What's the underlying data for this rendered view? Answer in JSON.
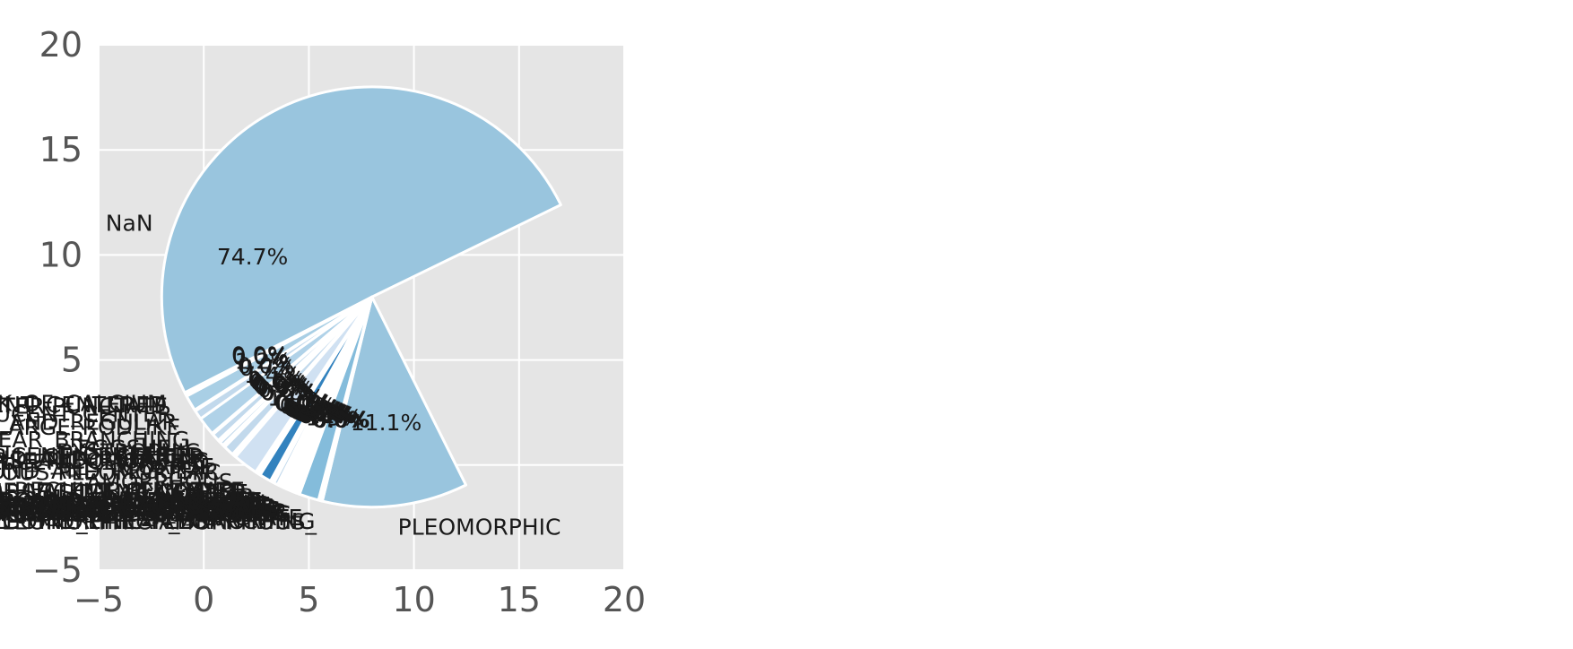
{
  "chart_data": {
    "type": "pie",
    "xlim": [
      -5,
      20
    ],
    "ylim": [
      -5,
      20
    ],
    "x_ticks": [
      "−5",
      "0",
      "5",
      "10",
      "15",
      "20"
    ],
    "y_ticks": [
      "−5",
      "0",
      "5",
      "10",
      "15",
      "20"
    ],
    "grid": true,
    "background": "#e5e5e5",
    "center": [
      8,
      8
    ],
    "radius": 10,
    "slices": [
      {
        "label": "NaN",
        "percent": 74.7,
        "pct_label": "74.7%",
        "color": "#99c5de"
      },
      {
        "label": "PLEOMORPHIC",
        "percent": 11.1,
        "pct_label": "11.1%",
        "color": "#99c5de"
      },
      {
        "label": "PLEOMORPHIC-AMORPHOUS_",
        "percent": 0.1,
        "pct_label": "0.0%",
        "color": "#c2d9ec"
      },
      {
        "label": "PLEOMORPHIC-FINE_LINEAR_BRANCHING",
        "percent": 0.1,
        "pct_label": "0.0%",
        "color": "#c2d9ec"
      },
      {
        "label": "PLEOMORPHIC-PLEOMORPHIC",
        "percent": 0.1,
        "pct_label": "0.0%",
        "color": "#c2d9ec"
      },
      {
        "label": "PUNCTATE",
        "percent": 1.5,
        "pct_label": "1.5%",
        "color": "#84bcdb"
      },
      {
        "label": "PUNCTATE-AMORPHOUS",
        "percent": 0.1,
        "pct_label": "0.1%",
        "color": "#c2d9ec"
      },
      {
        "label": "PUNCTATE-AMORPHOUS-PLEOMORPHIC",
        "percent": 0.1,
        "pct_label": "0.0%",
        "color": "#c2d9ec"
      },
      {
        "label": "PUNCTATE-FINE_LINEAR_BRANCHING",
        "percent": 0.1,
        "pct_label": "0.0%",
        "color": "#c2d9ec"
      },
      {
        "label": "PUNCTATE-LUCENT_CENTER",
        "percent": 0.1,
        "pct_label": "0.0%",
        "color": "#c2d9ec"
      },
      {
        "label": "PUNCTATE-PLEOMORPHIC",
        "percent": 0.2,
        "pct_label": "0.2%",
        "color": "#c2d9ec"
      },
      {
        "label": "ROUND_AND_REGULAR",
        "percent": 0.2,
        "pct_label": "0.2%",
        "color": "#c2d9ec"
      },
      {
        "label": "ROUND_AND_REGULAR-AMORPHOUS",
        "percent": 0.1,
        "pct_label": "0.1%",
        "color": "#c2d9ec"
      },
      {
        "label": "ROUND_AND_REGULAR-EGGSHELL",
        "percent": 0.1,
        "pct_label": "0.0%",
        "color": "#c2d9ec"
      },
      {
        "label": "ROUND_AND_REGULAR-LUCENT_CENTER",
        "percent": 0.2,
        "pct_label": "0.2%",
        "color": "#c2d9ec"
      },
      {
        "label": "ROUND_AND_REGULAR-LUCENT_CENTER-DYSTROPHIC",
        "percent": 0.1,
        "pct_label": "0.0%",
        "color": "#c2d9ec"
      },
      {
        "label": "ROUND_AND_REGULAR-LUCENT_CENTER-PUNCTATE",
        "percent": 0.1,
        "pct_label": "0.0%",
        "color": "#c2d9ec"
      },
      {
        "label": "ROUND_AND_REGULAR-PLEOMORPHIC",
        "percent": 0.1,
        "pct_label": "0.0%",
        "color": "#c2d9ec"
      },
      {
        "label": "ROUND_AND_REGULAR-PUNCTATE",
        "percent": 0.2,
        "pct_label": "0.2%",
        "color": "#c2d9ec"
      },
      {
        "label": "ROUND_AND_REGULAR-PUNCTATE-AMORPHOUS",
        "percent": 0.1,
        "pct_label": "0.0%",
        "color": "#c2d9ec"
      },
      {
        "label": "SKIN",
        "percent": 0.3,
        "pct_label": "0.3%",
        "color": "#c2d9ec"
      },
      {
        "label": "SKIN-COARSE-ROUND_AND_REGULAR",
        "percent": 0.1,
        "pct_label": "0.0%",
        "color": "#c2d9ec"
      },
      {
        "label": "SKIN-PUNCTATE",
        "percent": 0.1,
        "pct_label": "0.0%",
        "color": "#c2d9ec"
      },
      {
        "label": "SKIN-PUNCTATE-ROUND_AND_REGULAR",
        "percent": 0.1,
        "pct_label": "0.0%",
        "color": "#c2d9ec"
      },
      {
        "label": "VASCULAR",
        "percent": 0.9,
        "pct_label": "0.9%",
        "color": "#3282be"
      },
      {
        "label": "VASCULAR-COARSE",
        "percent": 0.1,
        "pct_label": "0.0%",
        "color": "#c2d9ec"
      },
      {
        "label": "VASCULAR-COARSE-LUCENT_CENTER",
        "percent": 0.1,
        "pct_label": "0.0%",
        "color": "#c2d9ec"
      },
      {
        "label": "VASCULAR-COARSE-LUCENT_CENTERED",
        "percent": 0.1,
        "pct_label": "0.0%",
        "color": "#c2d9ec"
      },
      {
        "label": "VASCULAR-COARSE-LUCENT_CENTER-ROUND_AND_REGULAR-PUNCTATE",
        "percent": 0.1,
        "pct_label": "0.0%",
        "color": "#c2d9ec"
      },
      {
        "label": "AMORPHOUS",
        "percent": 1.9,
        "pct_label": "1.9%",
        "color": "#d0e1f2"
      },
      {
        "label": "AMORPHOUS-PLEOMORPHIC",
        "percent": 0.2,
        "pct_label": "0.2%",
        "color": "#c2d9ec"
      },
      {
        "label": "AMORPHOUS-ROUND_AND_REGULAR",
        "percent": 0.1,
        "pct_label": "0.0%",
        "color": "#c2d9ec"
      },
      {
        "label": "COARSE",
        "percent": 0.8,
        "pct_label": "0.8%",
        "color": "#c2d9ec"
      },
      {
        "label": "COARSE-LUCENT_CENTERED",
        "percent": 0.1,
        "pct_label": "0.0%",
        "color": "#c2d9ec"
      },
      {
        "label": "COARSE-PLEOMORPHIC",
        "percent": 0.1,
        "pct_label": "0.0%",
        "color": "#c2d9ec"
      },
      {
        "label": "COARSE-ROUND_AND_REGULAR",
        "percent": 0.3,
        "pct_label": "0.3%",
        "color": "#c2d9ec"
      },
      {
        "label": "COARSE-ROUND_AND_REGULAR-LUCENT_CENTER",
        "percent": 0.1,
        "pct_label": "0.0%",
        "color": "#c2d9ec"
      },
      {
        "label": "COARSE-ROUND_AND_REGULAR-LUCENT_CENTERED",
        "percent": 0.1,
        "pct_label": "0.0%",
        "color": "#c2d9ec"
      },
      {
        "label": "DYSTROPHIC",
        "percent": 0.6,
        "pct_label": "0.6%",
        "color": "#c2d9ec"
      },
      {
        "label": "EGGSHELL",
        "percent": 0.1,
        "pct_label": "0.1%",
        "color": "#c2d9ec"
      },
      {
        "label": "FINE_LINEAR_BRANCHING",
        "percent": 1.4,
        "pct_label": "1.4%",
        "color": "#b0d2e8"
      },
      {
        "label": "LARGE_RODLIKE",
        "percent": 0.7,
        "pct_label": "0.7%",
        "color": "#c2d9ec"
      },
      {
        "label": "LARGE_RODLIKE-ROUND_AND_REGULAR",
        "percent": 0.1,
        "pct_label": "0.0%",
        "color": "#c2d9ec"
      },
      {
        "label": "LUCENT_CENTER",
        "percent": 1.2,
        "pct_label": "1.2%",
        "color": "#a9cfe5"
      },
      {
        "label": "LUCENT_CENTER-PUNCTATE",
        "percent": 0.1,
        "pct_label": "0.0%",
        "color": "#c2d9ec"
      },
      {
        "label": "LUCENT_CENTERED",
        "percent": 0.1,
        "pct_label": "0.0%",
        "color": "#c2d9ec"
      },
      {
        "label": "MILK_OF_CALCIUM",
        "percent": 0.1,
        "pct_label": "0.0%",
        "color": "#c2d9ec"
      }
    ]
  }
}
